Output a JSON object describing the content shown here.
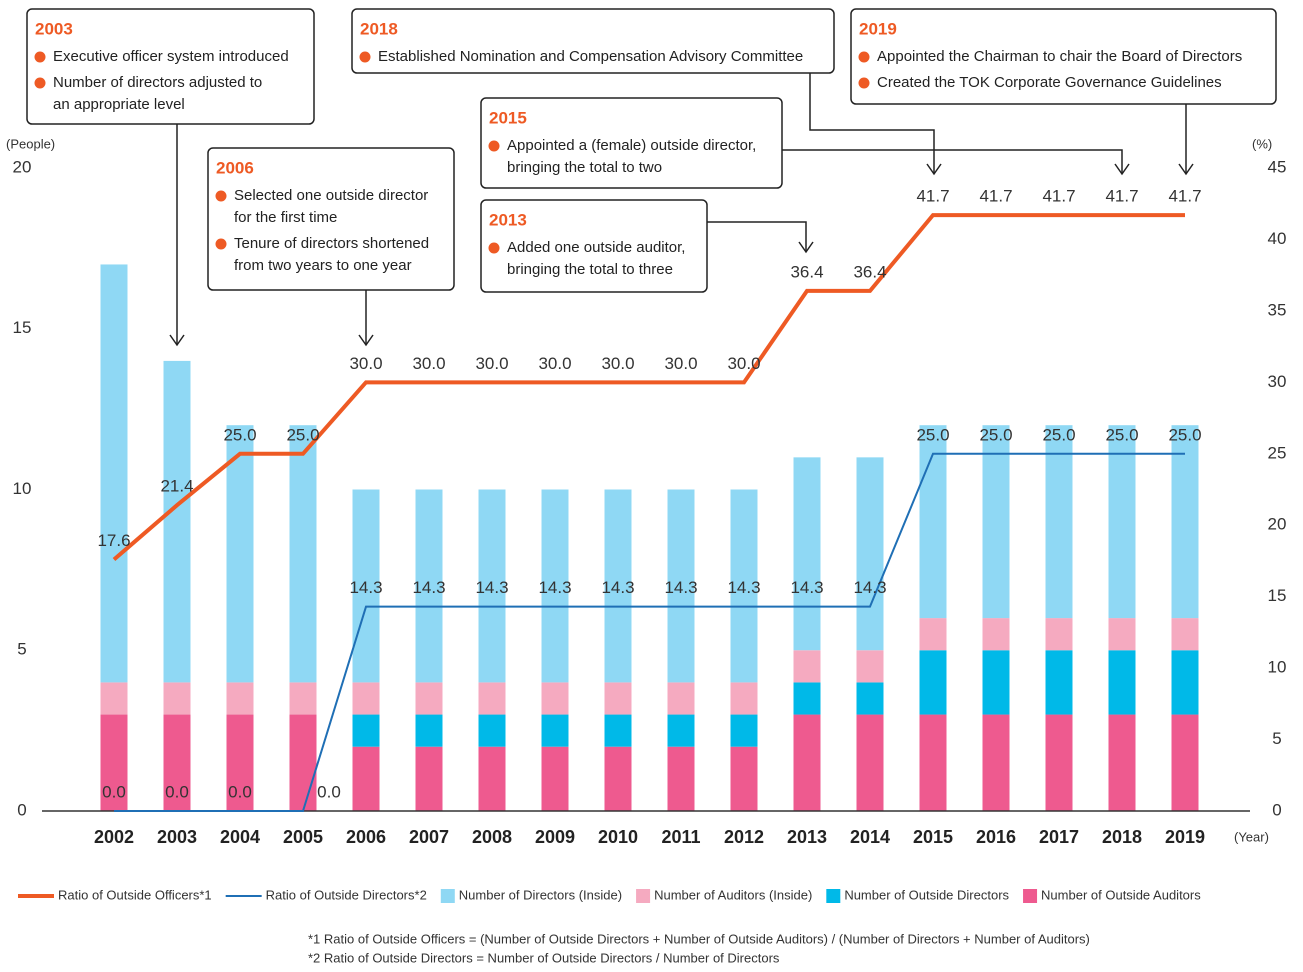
{
  "chart_data": {
    "type": "bar",
    "categories": [
      "2002",
      "2003",
      "2004",
      "2005",
      "2006",
      "2007",
      "2008",
      "2009",
      "2010",
      "2011",
      "2012",
      "2013",
      "2014",
      "2015",
      "2016",
      "2017",
      "2018",
      "2019"
    ],
    "series": [
      {
        "name": "Number of Outside Auditors",
        "type": "bar",
        "color": "#ee5a8f",
        "values": [
          3,
          3,
          3,
          3,
          2,
          2,
          2,
          2,
          2,
          2,
          2,
          3,
          3,
          3,
          3,
          3,
          3,
          3
        ]
      },
      {
        "name": "Number of Outside Directors",
        "type": "bar",
        "color": "#00b9e8",
        "values": [
          0,
          0,
          0,
          0,
          1,
          1,
          1,
          1,
          1,
          1,
          1,
          1,
          1,
          2,
          2,
          2,
          2,
          2
        ]
      },
      {
        "name": "Number of Auditors (Inside)",
        "type": "bar",
        "color": "#f5aac0",
        "values": [
          1,
          1,
          1,
          1,
          1,
          1,
          1,
          1,
          1,
          1,
          1,
          1,
          1,
          1,
          1,
          1,
          1,
          1
        ]
      },
      {
        "name": "Number of Directors (Inside)",
        "type": "bar",
        "color": "#8fd8f4",
        "values": [
          13,
          10,
          8,
          8,
          6,
          6,
          6,
          6,
          6,
          6,
          6,
          6,
          6,
          6,
          6,
          6,
          6,
          6
        ]
      },
      {
        "name": "Ratio of Outside Officers*1",
        "type": "line",
        "axis": "y2",
        "color": "#ee5a24",
        "values": [
          17.6,
          21.4,
          25,
          25,
          30,
          30,
          30,
          30,
          30,
          30,
          30,
          36.4,
          36.4,
          41.7,
          41.7,
          41.7,
          41.7,
          41.7
        ],
        "value_labels": [
          "17.6",
          "21.4",
          "25.0",
          "25.0",
          "30.0",
          "30.0",
          "30.0",
          "30.0",
          "30.0",
          "30.0",
          "30.0",
          "36.4",
          "36.4",
          "41.7",
          "41.7",
          "41.7",
          "41.7",
          "41.7"
        ]
      },
      {
        "name": "Ratio of Outside Directors*2",
        "type": "line",
        "axis": "y2",
        "color": "#1f6fb5",
        "values": [
          0,
          0,
          0,
          0,
          14.3,
          14.3,
          14.3,
          14.3,
          14.3,
          14.3,
          14.3,
          14.3,
          14.3,
          25,
          25,
          25,
          25,
          25
        ],
        "value_labels": [
          "0.0",
          "0.0",
          "0.0",
          "0.0",
          "14.3",
          "14.3",
          "14.3",
          "14.3",
          "14.3",
          "14.3",
          "14.3",
          "14.3",
          "14.3",
          "25.0",
          "25.0",
          "25.0",
          "25.0",
          "25.0"
        ]
      }
    ],
    "ylabel": "(People)",
    "y2label": "(%)",
    "xlabel": "(Year)",
    "ylim": [
      0,
      20
    ],
    "yticks": [
      0,
      5,
      10,
      15,
      20
    ],
    "y2lim": [
      0,
      45
    ],
    "y2ticks": [
      0,
      5,
      10,
      15,
      20,
      25,
      30,
      35,
      40,
      45
    ],
    "annotations": [
      {
        "title": "2003",
        "items": [
          [
            "Executive officer system introduced"
          ],
          [
            "Number of directors adjusted to",
            "an appropriate level"
          ]
        ]
      },
      {
        "title": "2018",
        "items": [
          [
            "Established Nomination and Compensation Advisory Committee"
          ]
        ]
      },
      {
        "title": "2019",
        "items": [
          [
            "Appointed the Chairman to chair the Board of Directors"
          ],
          [
            "Created the TOK Corporate Governance Guidelines"
          ]
        ]
      },
      {
        "title": "2015",
        "items": [
          [
            "Appointed a (female) outside director,",
            "bringing the total to two"
          ]
        ]
      },
      {
        "title": "2006",
        "items": [
          [
            "Selected one outside director",
            "for the first time"
          ],
          [
            "Tenure of directors shortened",
            "from two years to one year"
          ]
        ]
      },
      {
        "title": "2013",
        "items": [
          [
            "Added one outside auditor,",
            "bringing the total to three"
          ]
        ]
      }
    ],
    "footnotes": [
      "*1 Ratio of Outside Officers = (Number of Outside Directors + Number of Outside Auditors) / (Number of Directors + Number of Auditors)",
      "*2 Ratio of Outside Directors = Number of Outside Directors / Number of Directors"
    ]
  }
}
